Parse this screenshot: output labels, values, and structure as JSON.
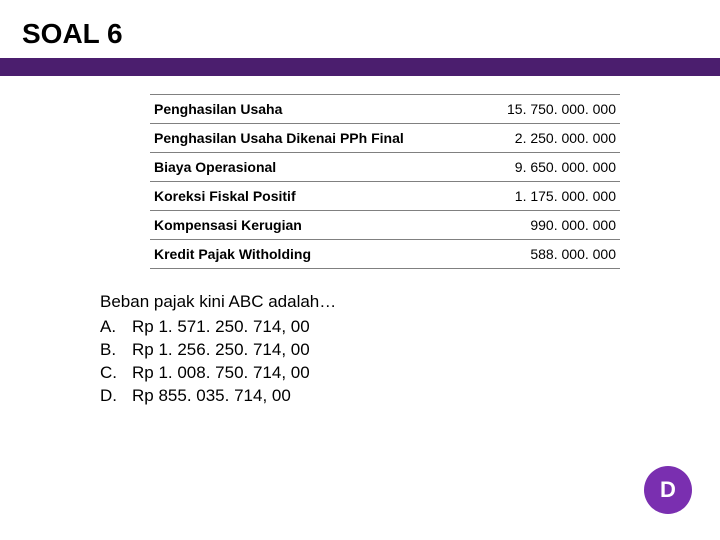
{
  "colors": {
    "bar": "#4b1e6e",
    "badge_bg": "#7a2fb0",
    "badge_text": "#ffffff",
    "border": "#808080",
    "text": "#000000",
    "bg": "#ffffff"
  },
  "title": "SOAL 6",
  "table": {
    "rows": [
      {
        "label": "Penghasilan Usaha",
        "value": "15. 750. 000. 000"
      },
      {
        "label": "Penghasilan Usaha Dikenai PPh Final",
        "value": "2. 250. 000. 000"
      },
      {
        "label": "Biaya Operasional",
        "value": "9. 650. 000. 000"
      },
      {
        "label": "Koreksi Fiskal Positif",
        "value": "1. 175. 000. 000"
      },
      {
        "label": "Kompensasi Kerugian",
        "value": "990. 000. 000"
      },
      {
        "label": "Kredit Pajak Witholding",
        "value": "588. 000. 000"
      }
    ]
  },
  "question": "Beban pajak kini ABC adalah…",
  "options": [
    {
      "letter": "A.",
      "text": "Rp 1. 571. 250. 714, 00"
    },
    {
      "letter": "B.",
      "text": "Rp 1. 256. 250. 714, 00"
    },
    {
      "letter": "C.",
      "text": "Rp 1. 008. 750. 714, 00"
    },
    {
      "letter": "D.",
      "text": "Rp 855. 035. 714, 00"
    }
  ],
  "answer": "D"
}
